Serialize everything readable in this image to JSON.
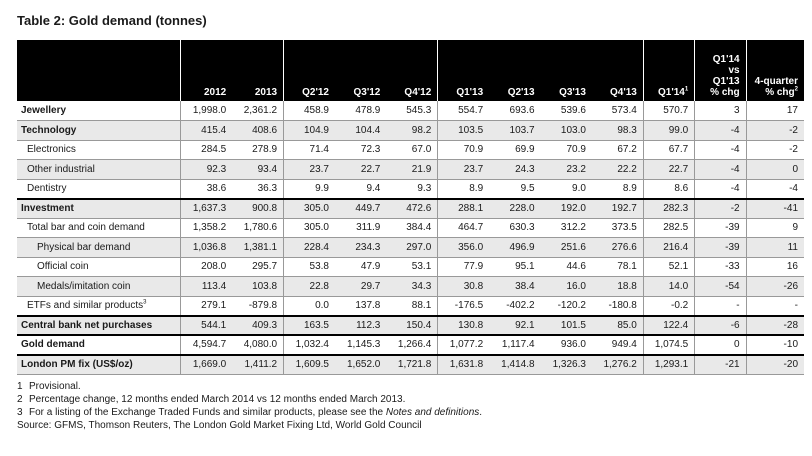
{
  "title": "Table 2: Gold demand (tonnes)",
  "headers": {
    "label": "",
    "cols": [
      "2012",
      "2013",
      "Q2'12",
      "Q3'12",
      "Q4'12",
      "Q1'13",
      "Q2'13",
      "Q3'13",
      "Q4'13",
      "Q1'14"
    ],
    "q1_14_sup": "1",
    "chg_lines": [
      "Q1'14",
      "vs",
      "Q1'13",
      "% chg"
    ],
    "chg4_lines": [
      "4-quarter",
      "% chg"
    ],
    "chg4_sup": "2"
  },
  "rows": [
    {
      "label": "Jewellery",
      "sup": "",
      "vals": [
        "1,998.0",
        "2,361.2",
        "458.9",
        "478.9",
        "545.3",
        "554.7",
        "693.6",
        "539.6",
        "573.4",
        "570.7"
      ],
      "chg": "3",
      "chg4": "17"
    },
    {
      "label": "Technology",
      "sup": "",
      "vals": [
        "415.4",
        "408.6",
        "104.9",
        "104.4",
        "98.2",
        "103.5",
        "103.7",
        "103.0",
        "98.3",
        "99.0"
      ],
      "chg": "-4",
      "chg4": "-2"
    },
    {
      "label": "Electronics",
      "sup": "",
      "vals": [
        "284.5",
        "278.9",
        "71.4",
        "72.3",
        "67.0",
        "70.9",
        "69.9",
        "70.9",
        "67.2",
        "67.7"
      ],
      "chg": "-4",
      "chg4": "-2"
    },
    {
      "label": "Other industrial",
      "sup": "",
      "vals": [
        "92.3",
        "93.4",
        "23.7",
        "22.7",
        "21.9",
        "23.7",
        "24.3",
        "23.2",
        "22.2",
        "22.7"
      ],
      "chg": "-4",
      "chg4": "0"
    },
    {
      "label": "Dentistry",
      "sup": "",
      "vals": [
        "38.6",
        "36.3",
        "9.9",
        "9.4",
        "9.3",
        "8.9",
        "9.5",
        "9.0",
        "8.9",
        "8.6"
      ],
      "chg": "-4",
      "chg4": "-4"
    },
    {
      "label": "Investment",
      "sup": "",
      "vals": [
        "1,637.3",
        "900.8",
        "305.0",
        "449.7",
        "472.6",
        "288.1",
        "228.0",
        "192.0",
        "192.7",
        "282.3"
      ],
      "chg": "-2",
      "chg4": "-41"
    },
    {
      "label": "Total bar and coin demand",
      "sup": "",
      "vals": [
        "1,358.2",
        "1,780.6",
        "305.0",
        "311.9",
        "384.4",
        "464.7",
        "630.3",
        "312.2",
        "373.5",
        "282.5"
      ],
      "chg": "-39",
      "chg4": "9"
    },
    {
      "label": "Physical bar demand",
      "sup": "",
      "vals": [
        "1,036.8",
        "1,381.1",
        "228.4",
        "234.3",
        "297.0",
        "356.0",
        "496.9",
        "251.6",
        "276.6",
        "216.4"
      ],
      "chg": "-39",
      "chg4": "11"
    },
    {
      "label": "Official coin",
      "sup": "",
      "vals": [
        "208.0",
        "295.7",
        "53.8",
        "47.9",
        "53.1",
        "77.9",
        "95.1",
        "44.6",
        "78.1",
        "52.1"
      ],
      "chg": "-33",
      "chg4": "16"
    },
    {
      "label": "Medals/imitation coin",
      "sup": "",
      "vals": [
        "113.4",
        "103.8",
        "22.8",
        "29.7",
        "34.3",
        "30.8",
        "38.4",
        "16.0",
        "18.8",
        "14.0"
      ],
      "chg": "-54",
      "chg4": "-26"
    },
    {
      "label": "ETFs and similar products",
      "sup": "3",
      "vals": [
        "279.1",
        "-879.8",
        "0.0",
        "137.8",
        "88.1",
        "-176.5",
        "-402.2",
        "-120.2",
        "-180.8",
        "-0.2"
      ],
      "chg": "-",
      "chg4": "-"
    },
    {
      "label": "Central bank net purchases",
      "sup": "",
      "vals": [
        "544.1",
        "409.3",
        "163.5",
        "112.3",
        "150.4",
        "130.8",
        "92.1",
        "101.5",
        "85.0",
        "122.4"
      ],
      "chg": "-6",
      "chg4": "-28"
    },
    {
      "label": "Gold demand",
      "sup": "",
      "vals": [
        "4,594.7",
        "4,080.0",
        "1,032.4",
        "1,145.3",
        "1,266.4",
        "1,077.2",
        "1,117.4",
        "936.0",
        "949.4",
        "1,074.5"
      ],
      "chg": "0",
      "chg4": "-10"
    },
    {
      "label": "London PM fix (US$/oz)",
      "sup": "",
      "vals": [
        "1,669.0",
        "1,411.2",
        "1,609.5",
        "1,652.0",
        "1,721.8",
        "1,631.8",
        "1,414.8",
        "1,326.3",
        "1,276.2",
        "1,293.1"
      ],
      "chg": "-21",
      "chg4": "-20"
    }
  ],
  "notes": {
    "n1_num": "1",
    "n1": "Provisional.",
    "n2_num": "2",
    "n2": "Percentage change, 12 months ended March 2014 vs 12 months ended March 2013.",
    "n3_num": "3",
    "n3_pre": "For a listing of the Exchange Traded Funds and similar products, please see the ",
    "n3_em": "Notes and definitions",
    "n3_post": ".",
    "source": "Source: GFMS, Thomson Reuters, The London Gold Market Fixing Ltd, World Gold Council"
  }
}
